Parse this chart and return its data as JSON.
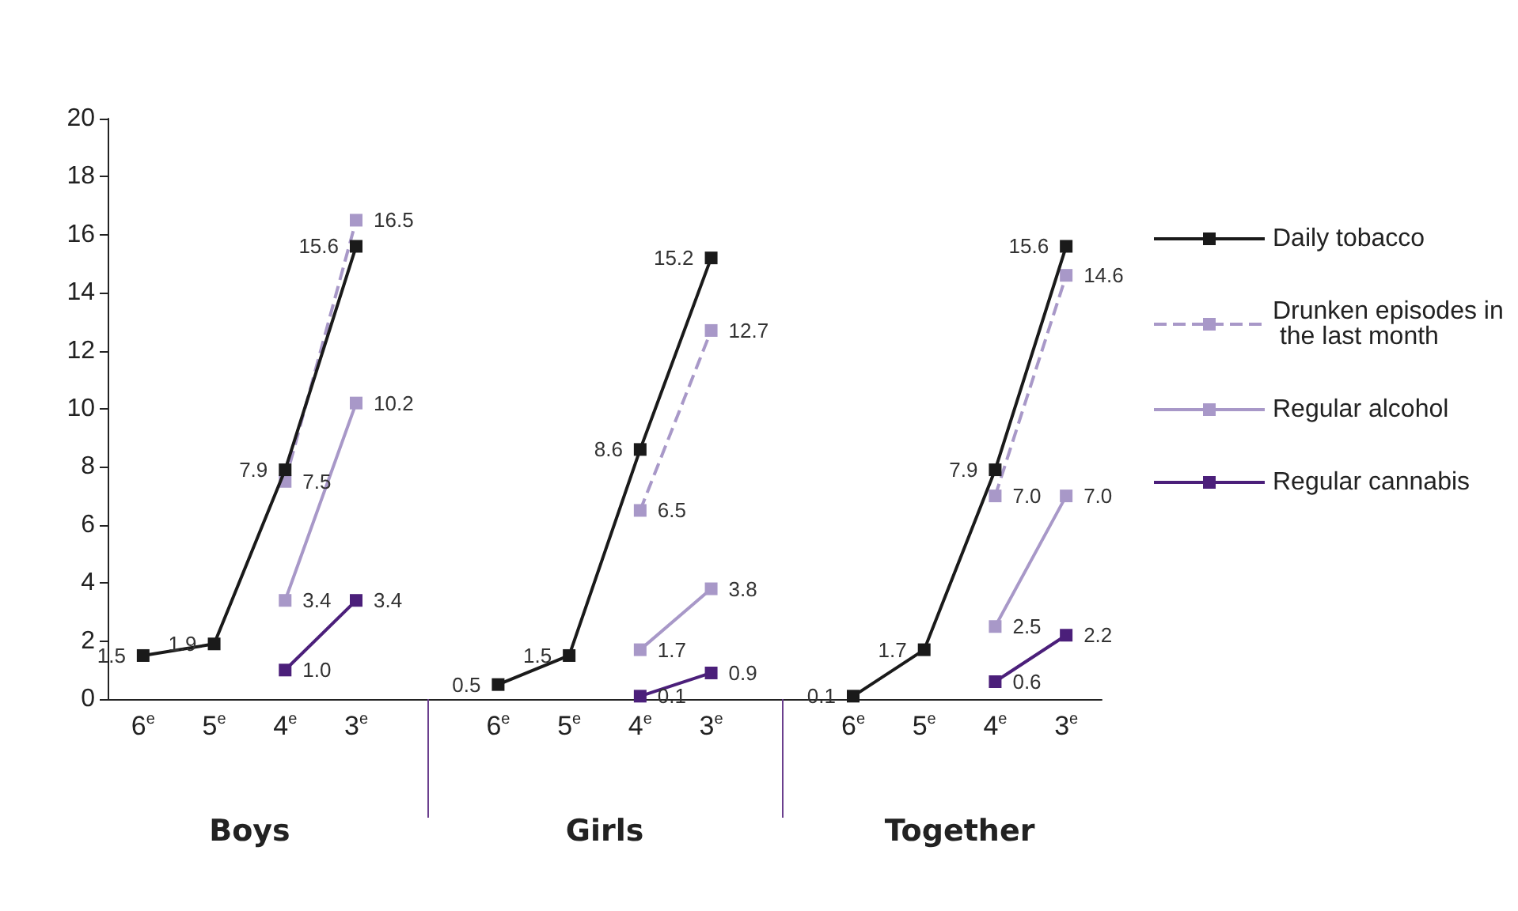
{
  "chart_data": {
    "type": "line",
    "categories": [
      "6$^{e}$",
      "5$^{e}$",
      "4$^{e}$",
      "3$^{e}$",
      null,
      "6$^{e}$",
      "5$^{e}$",
      "4$^{e}$",
      "3$^{e}$",
      null,
      "6$^{e}$",
      "5$^{e}$",
      "4$^{e}$",
      "3$^{e}$"
    ],
    "annotations": [
      "Boys",
      "Girls",
      "Together"
    ],
    "series": [
      {
        "name": "Daily tobacco",
        "color": "#1a1a1a",
        "values": [
          1.5,
          1.9,
          7.9,
          15.6,
          null,
          0.5,
          1.5,
          8.6,
          15.2,
          null,
          0.1,
          1.7,
          7.9,
          15.6
        ],
        "value_labels": [
          "1.5",
          "1.9",
          "7.9",
          "15.6",
          null,
          "0.5",
          "1.5",
          "8.6",
          "15.2",
          null,
          "0.1",
          "1.7",
          "7.9",
          "15.6"
        ]
      },
      {
        "name": "Drunken episodes in the last month",
        "color": "#a898c8",
        "line_style": "dashed",
        "values": [
          null,
          null,
          7.5,
          16.5,
          null,
          null,
          null,
          6.5,
          12.7,
          null,
          null,
          null,
          7.0,
          14.6
        ],
        "value_labels": [
          null,
          null,
          "7.5",
          "16.5",
          null,
          null,
          null,
          "6.5",
          "12.7",
          null,
          null,
          null,
          "7.0",
          "14.6"
        ]
      },
      {
        "name": "Regular alcohol",
        "color": "#a898c8",
        "values": [
          null,
          null,
          3.4,
          10.2,
          null,
          null,
          null,
          1.7,
          3.8,
          null,
          null,
          null,
          2.5,
          7.0
        ],
        "value_labels": [
          null,
          null,
          "3.4",
          "10.2",
          null,
          null,
          null,
          "1.7",
          "3.8",
          null,
          null,
          null,
          "2.5",
          "7.0"
        ]
      },
      {
        "name": "Regular cannabis",
        "color": "#4b1f7a",
        "values": [
          null,
          null,
          1.0,
          3.4,
          null,
          null,
          null,
          0.1,
          0.9,
          null,
          null,
          null,
          0.6,
          2.2
        ],
        "value_labels": [
          null,
          null,
          "1.0",
          "3.4",
          null,
          null,
          null,
          "0.1",
          "0.9",
          null,
          null,
          null,
          "0.6",
          "2.2"
        ]
      }
    ],
    "ylim": [
      0,
      20
    ],
    "yticks": [
      0,
      2,
      4,
      6,
      8,
      10,
      12,
      14,
      16,
      18,
      20
    ],
    "grid": false,
    "legend": "right",
    "marker": "square",
    "line_style": "solid"
  }
}
